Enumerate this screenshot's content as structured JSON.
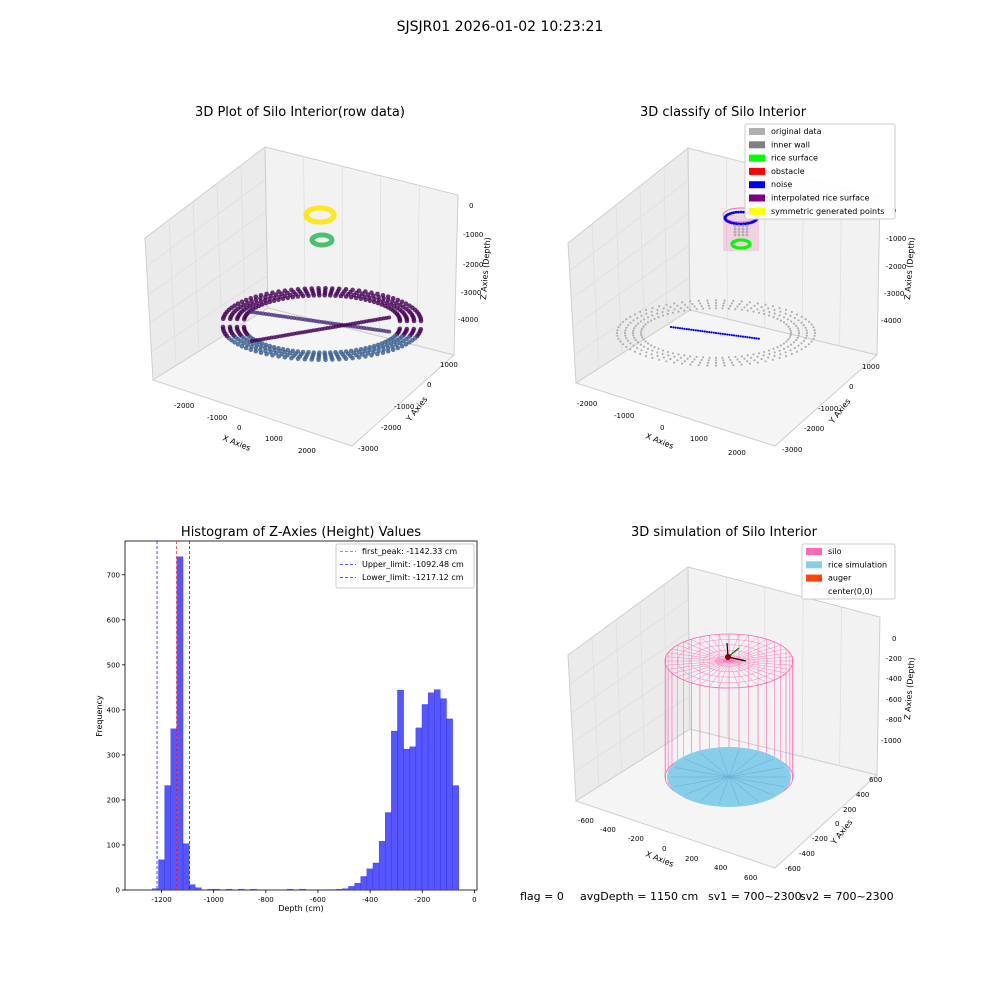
{
  "suptitle": "SJSJR01 2026-01-02 10:23:21",
  "status_line": {
    "flag": "flag = 0",
    "avg_depth": "avgDepth = 1150 cm",
    "sv1": "sv1 = 700~2300",
    "sv2": "sv2 = 700~2300"
  },
  "colors": {
    "hist_bar": "#4d4dff",
    "hist_edge": "#2222dd",
    "first_peak": "#ff3333",
    "limit": "#1f1fff",
    "silo": "#ff69b4",
    "rice_sim": "#87ceeb",
    "auger": "#ff4500",
    "original": "#b0b0b0",
    "inner_wall": "#808080",
    "rice_surface": "#00ff00",
    "obstacle": "#ff0000",
    "noise": "#0000ff",
    "interp": "#800080",
    "symmetric": "#ffff00"
  },
  "chart_data": [
    {
      "type": "scatter",
      "panel": "raw",
      "title": "3D Plot of Silo Interior(row data)",
      "xlabel": "X Axies",
      "ylabel": "Y Axies",
      "zlabel": "Z Axies (Depth)",
      "x_ticks": [
        "-2000",
        "-1000",
        "0",
        "1000",
        "2000"
      ],
      "y_ticks": [
        "1000",
        "0",
        "-1000",
        "-2000",
        "-3000"
      ],
      "z_ticks": [
        "0",
        "-1000",
        "-2000",
        "-3000",
        "-4000"
      ],
      "colormap": "viridis"
    },
    {
      "type": "scatter",
      "panel": "classify",
      "title": "3D classify of Silo Interior",
      "xlabel": "X Axies",
      "ylabel": "Y Axies",
      "zlabel": "Z Axies (Depth)",
      "x_ticks": [
        "-2000",
        "-1000",
        "0",
        "1000",
        "2000"
      ],
      "y_ticks": [
        "1000",
        "0",
        "-1000",
        "-2000",
        "-3000"
      ],
      "z_ticks": [
        "0",
        "-1000",
        "-2000",
        "-3000",
        "-4000"
      ],
      "legend": [
        {
          "label": "original data",
          "color": "#b0b0b0"
        },
        {
          "label": "inner wall",
          "color": "#808080"
        },
        {
          "label": "rice surface",
          "color": "#00ff00"
        },
        {
          "label": "obstacle",
          "color": "#ff0000"
        },
        {
          "label": "noise",
          "color": "#0000ff"
        },
        {
          "label": "interpolated rice surface",
          "color": "#800080"
        },
        {
          "label": "symmetric generated points",
          "color": "#ffff00"
        }
      ]
    },
    {
      "type": "bar",
      "panel": "histogram",
      "title": "Histogram of Z-Axies (Height) Values",
      "xlabel": "Depth (cm)",
      "ylabel": "Frequency",
      "xlim": [
        -1340,
        10
      ],
      "ylim": [
        0,
        775
      ],
      "x_ticks": [
        -1200,
        -1000,
        -800,
        -600,
        -400,
        -200,
        0
      ],
      "y_ticks": [
        0,
        100,
        200,
        300,
        400,
        500,
        600,
        700
      ],
      "bin_width": 23.5,
      "bin_start": -1235,
      "values": [
        3,
        67,
        232,
        358,
        740,
        103,
        12,
        5,
        0,
        2,
        2,
        0,
        2,
        0,
        2,
        0,
        2,
        0,
        0,
        0,
        0,
        0,
        2,
        0,
        2,
        0,
        0,
        0,
        1,
        1,
        2,
        3,
        8,
        15,
        30,
        47,
        60,
        108,
        172,
        353,
        444,
        313,
        318,
        360,
        412,
        438,
        445,
        425,
        380,
        232
      ],
      "lines": [
        {
          "label": "first_peak: -1142.33 cm",
          "x": -1142.33,
          "color": "#ff3333"
        },
        {
          "label": "Upper_limit: -1092.48 cm",
          "x": -1092.48,
          "color": "#1f1fff"
        },
        {
          "label": "Lower_limit: -1217.12 cm",
          "x": -1217.12,
          "color": "#1f1fff"
        }
      ],
      "legend_position": "upper right"
    },
    {
      "type": "scatter",
      "panel": "simulation",
      "title": "3D simulation of Silo Interior",
      "xlabel": "X Axies",
      "ylabel": "Y Axies",
      "zlabel": "Z Axies (Depth)",
      "x_ticks": [
        "-600",
        "-400",
        "-200",
        "0",
        "200",
        "400",
        "600"
      ],
      "y_ticks": [
        "600",
        "400",
        "200",
        "0",
        "-200",
        "-400",
        "-600"
      ],
      "z_ticks": [
        "0",
        "-200",
        "-400",
        "-600",
        "-800",
        "-1000"
      ],
      "legend": [
        {
          "label": "silo",
          "color": "#ff69b4"
        },
        {
          "label": "rice simulation",
          "color": "#87ceeb"
        },
        {
          "label": "auger",
          "color": "#ff4500"
        },
        {
          "label": "center(0,0)",
          "color": ""
        }
      ]
    }
  ]
}
